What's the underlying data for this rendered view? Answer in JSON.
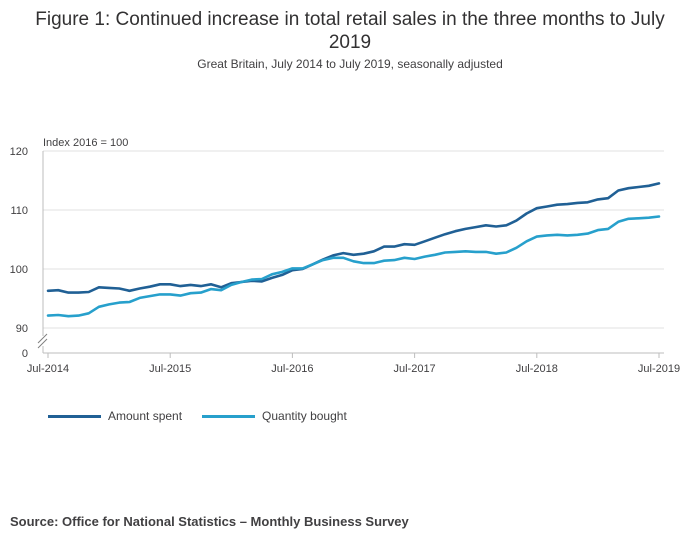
{
  "chart_data": {
    "type": "line",
    "title": "Figure 1: Continued increase in total retail sales in the three months to July 2019",
    "subtitle": "Great Britain, July 2014 to July 2019, seasonally adjusted",
    "ylabel": "Index 2016 = 100",
    "xlabel": "",
    "ylim": [
      90,
      120
    ],
    "y_ticks": [
      "120",
      "110",
      "100",
      "90",
      "0"
    ],
    "x_ticks": [
      "Jul-2014",
      "Jul-2015",
      "Jul-2016",
      "Jul-2017",
      "Jul-2018",
      "Jul-2019"
    ],
    "x_start": "Jul-2014",
    "x_end": "Jul-2019",
    "axis_break": true,
    "grid": true,
    "legend_position": "bottom-left",
    "series": [
      {
        "name": "Amount spent",
        "color": "#206095",
        "values": [
          96.3,
          96.4,
          96.0,
          96.0,
          96.1,
          96.9,
          96.8,
          96.7,
          96.3,
          96.7,
          97.0,
          97.4,
          97.4,
          97.1,
          97.3,
          97.1,
          97.4,
          96.9,
          97.6,
          97.8,
          98.0,
          97.9,
          98.5,
          99.0,
          99.8,
          100.0,
          100.8,
          101.6,
          102.3,
          102.7,
          102.4,
          102.6,
          103.0,
          103.8,
          103.8,
          104.2,
          104.1,
          104.7,
          105.3,
          105.9,
          106.4,
          106.8,
          107.1,
          107.4,
          107.2,
          107.4,
          108.2,
          109.4,
          110.3,
          110.6,
          110.9,
          111.0,
          111.2,
          111.3,
          111.8,
          112.0,
          113.3,
          113.7,
          113.9,
          114.1,
          114.5
        ]
      },
      {
        "name": "Quantity bought",
        "color": "#27a0cc",
        "values": [
          92.1,
          92.2,
          92.0,
          92.1,
          92.5,
          93.6,
          94.0,
          94.3,
          94.4,
          95.1,
          95.4,
          95.7,
          95.7,
          95.5,
          95.9,
          96.0,
          96.6,
          96.4,
          97.3,
          97.8,
          98.2,
          98.3,
          99.1,
          99.5,
          100.1,
          100.1,
          100.8,
          101.5,
          101.9,
          101.9,
          101.3,
          101.0,
          101.0,
          101.4,
          101.5,
          101.9,
          101.7,
          102.1,
          102.4,
          102.8,
          102.9,
          103.0,
          102.9,
          102.9,
          102.6,
          102.8,
          103.6,
          104.7,
          105.5,
          105.7,
          105.8,
          105.7,
          105.8,
          106.0,
          106.6,
          106.8,
          108.0,
          108.5,
          108.6,
          108.7,
          108.9
        ]
      }
    ]
  },
  "source": "Source: Office for National Statistics – Monthly Business Survey"
}
